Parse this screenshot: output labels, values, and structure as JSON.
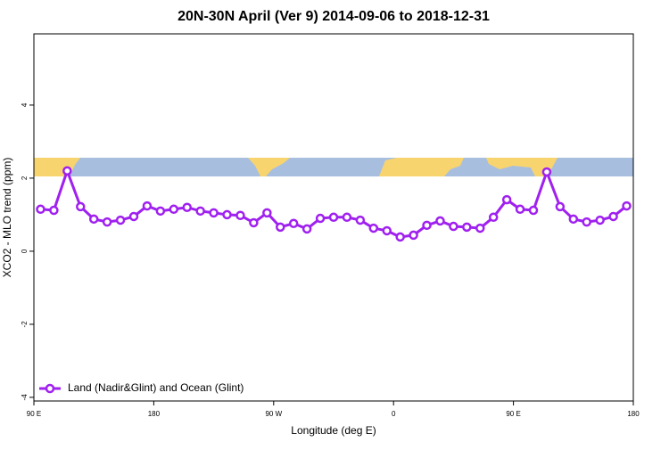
{
  "chart_data": {
    "type": "line",
    "title": "20N-30N April (Ver 9)   2014-09-06 to 2018-12-31",
    "x_label": "Longitude (deg E)",
    "y_label": "XCO2 - MLO trend (ppm)",
    "x": [
      95,
      105,
      115,
      125,
      135,
      145,
      155,
      165,
      175,
      185,
      195,
      205,
      215,
      225,
      235,
      245,
      255,
      265,
      275,
      285,
      295,
      305,
      315,
      325,
      335,
      345,
      355,
      365,
      375,
      385,
      395,
      405,
      415,
      425,
      435,
      445,
      455,
      465,
      475,
      485,
      495,
      505,
      515,
      525,
      535
    ],
    "series": [
      {
        "name": "Land (Nadir&Glint) and Ocean (Glint)",
        "color": "#a020f0",
        "values": [
          1.15,
          1.12,
          2.2,
          1.22,
          0.88,
          0.8,
          0.85,
          0.95,
          1.24,
          1.1,
          1.15,
          1.2,
          1.1,
          1.05,
          1.0,
          0.98,
          0.78,
          1.05,
          0.66,
          0.76,
          0.61,
          0.9,
          0.93,
          0.93,
          0.85,
          0.63,
          0.56,
          0.39,
          0.44,
          0.71,
          0.83,
          0.68,
          0.66,
          0.63,
          0.93,
          1.41,
          1.15,
          1.12,
          2.17,
          1.22,
          0.88,
          0.8,
          0.85,
          0.95,
          1.24
        ]
      }
    ],
    "xlim": [
      90,
      540
    ],
    "xticks": [
      {
        "value": 90,
        "label": "90 E"
      },
      180,
      {
        "value": 270,
        "label": "90 W"
      },
      {
        "value": 360,
        "label": "0"
      },
      {
        "value": 450,
        "label": "90 E"
      },
      {
        "value": 540,
        "label": "180"
      }
    ],
    "ylim": [
      -4.1,
      5.95
    ],
    "yticks": [
      -4,
      -2,
      0,
      2,
      4
    ],
    "legend": "bottom-left"
  }
}
